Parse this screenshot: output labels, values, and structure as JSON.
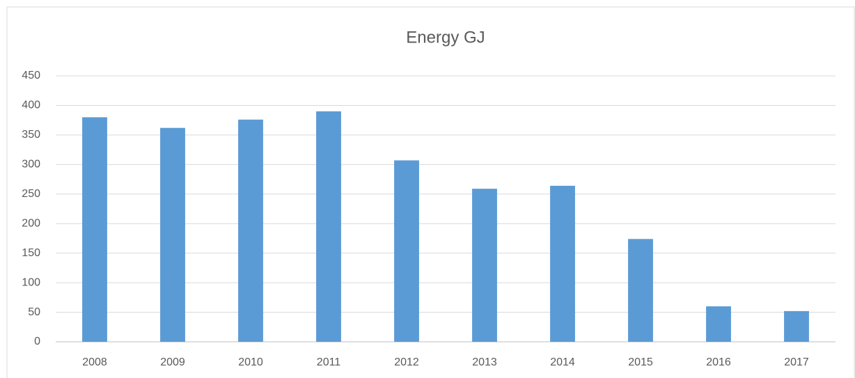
{
  "chart_data": {
    "type": "bar",
    "title": "Energy GJ",
    "categories": [
      "2008",
      "2009",
      "2010",
      "2011",
      "2012",
      "2013",
      "2014",
      "2015",
      "2016",
      "2017"
    ],
    "values": [
      380,
      362,
      376,
      390,
      307,
      259,
      264,
      174,
      60,
      52
    ],
    "color": "#5b9bd5",
    "ylim": [
      0,
      450
    ],
    "yticks": [
      0,
      50,
      100,
      150,
      200,
      250,
      300,
      350,
      400,
      450
    ],
    "grid": true
  }
}
